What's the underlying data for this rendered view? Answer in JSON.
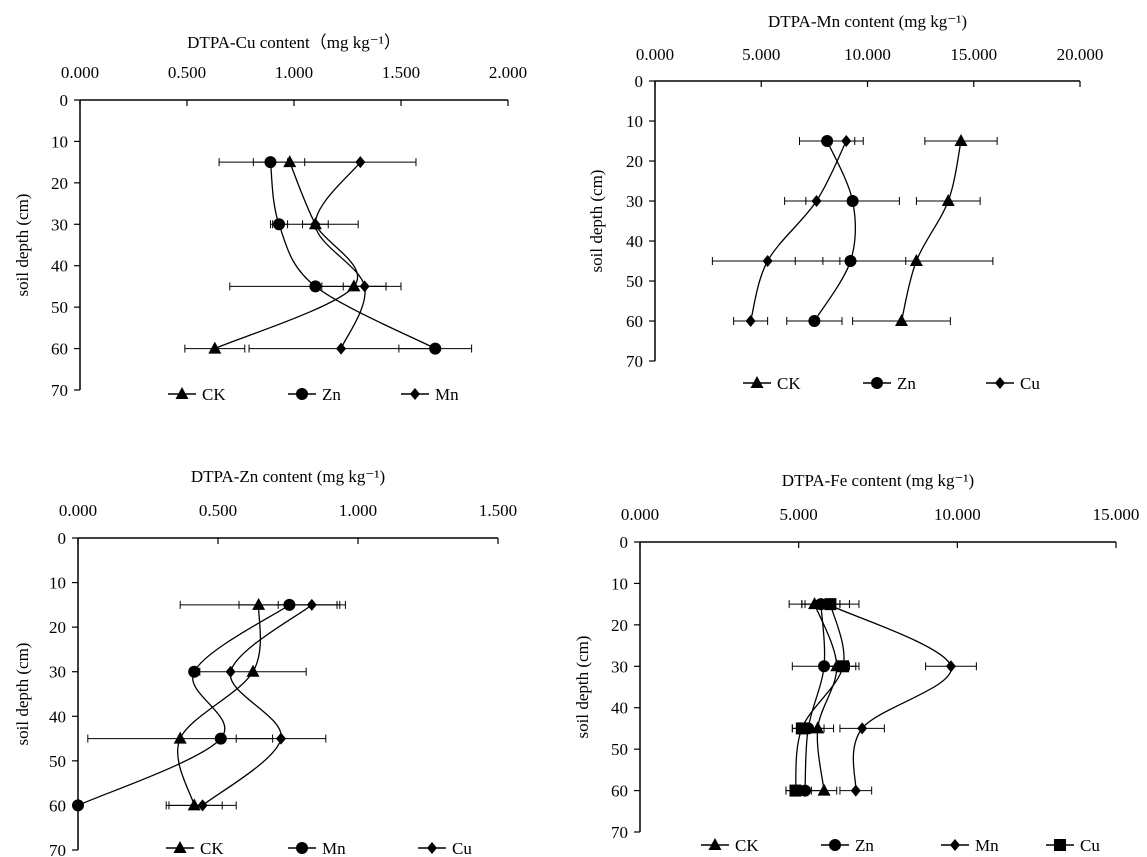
{
  "chart_data": [
    {
      "type": "line",
      "title": "DTPA-Cu content（mg kg⁻¹）",
      "xlabel": "DTPA-Cu content（mg kg⁻¹）",
      "ylabel": "soil depth (cm)",
      "xlim": [
        0,
        2
      ],
      "ylim": [
        0,
        70
      ],
      "x_ticks": [
        "0.000",
        "0.500",
        "1.000",
        "1.500",
        "2.000"
      ],
      "y_ticks": [
        "0",
        "10",
        "20",
        "30",
        "40",
        "50",
        "60",
        "70"
      ],
      "legend_position": "bottom",
      "y_reversed": true,
      "series": [
        {
          "name": "CK",
          "marker": "triangle",
          "points": [
            [
              0.98,
              15
            ],
            [
              1.1,
              30
            ],
            [
              1.28,
              45
            ],
            [
              0.63,
              60
            ]
          ],
          "errors": [
            0.33,
            0.06,
            0.15,
            0.14
          ]
        },
        {
          "name": "Zn",
          "marker": "circle",
          "points": [
            [
              0.89,
              15
            ],
            [
              0.93,
              30
            ],
            [
              1.1,
              45
            ],
            [
              1.66,
              60
            ]
          ],
          "errors": [
            0.08,
            0.04,
            0.4,
            0.17
          ]
        },
        {
          "name": "Mn",
          "marker": "diamond",
          "points": [
            [
              1.31,
              15
            ],
            [
              1.1,
              30
            ],
            [
              1.33,
              45
            ],
            [
              1.22,
              60
            ]
          ],
          "errors": [
            0.26,
            0.2,
            0.1,
            0.43
          ]
        }
      ]
    },
    {
      "type": "line",
      "title": "DTPA-Mn content (mg kg⁻¹)",
      "xlabel": "DTPA-Mn content (mg kg⁻¹)",
      "ylabel": "soil depth (cm)",
      "xlim": [
        0,
        20
      ],
      "ylim": [
        0,
        70
      ],
      "x_ticks": [
        "0.000",
        "5.000",
        "10.000",
        "15.000",
        "20.000"
      ],
      "y_ticks": [
        "0",
        "10",
        "20",
        "30",
        "40",
        "50",
        "60",
        "70"
      ],
      "legend_position": "bottom",
      "y_reversed": true,
      "series": [
        {
          "name": "CK",
          "marker": "triangle",
          "points": [
            [
              14.4,
              15
            ],
            [
              13.8,
              30
            ],
            [
              12.3,
              45
            ],
            [
              11.6,
              60
            ]
          ],
          "errors": [
            1.7,
            1.5,
            3.6,
            2.3
          ]
        },
        {
          "name": "Zn",
          "marker": "circle",
          "points": [
            [
              8.1,
              15
            ],
            [
              9.3,
              30
            ],
            [
              9.2,
              45
            ],
            [
              7.5,
              60
            ]
          ],
          "errors": [
            1.3,
            2.2,
            2.6,
            1.3
          ]
        },
        {
          "name": "Cu",
          "marker": "diamond",
          "points": [
            [
              9.0,
              15
            ],
            [
              7.6,
              30
            ],
            [
              5.3,
              45
            ],
            [
              4.5,
              60
            ]
          ],
          "errors": [
            0.8,
            1.5,
            2.6,
            0.8
          ]
        }
      ]
    },
    {
      "type": "line",
      "title": "DTPA-Zn content (mg kg⁻¹)",
      "xlabel": "DTPA-Zn content (mg kg⁻¹)",
      "ylabel": "soil depth (cm)",
      "xlim": [
        0,
        1.5
      ],
      "ylim": [
        0,
        70
      ],
      "x_ticks": [
        "0.000",
        "0.500",
        "1.000",
        "1.500"
      ],
      "y_ticks": [
        "0",
        "10",
        "20",
        "30",
        "40",
        "50",
        "60",
        "70"
      ],
      "legend_position": "bottom",
      "y_reversed": true,
      "series": [
        {
          "name": "CK",
          "marker": "triangle",
          "points": [
            [
              0.645,
              15
            ],
            [
              0.625,
              30
            ],
            [
              0.365,
              45
            ],
            [
              0.415,
              60
            ]
          ],
          "errors": [
            0.28,
            0.19,
            0.33,
            0.1
          ]
        },
        {
          "name": "Mn",
          "marker": "circle",
          "points": [
            [
              0.755,
              15
            ],
            [
              0.415,
              30
            ],
            [
              0.51,
              45
            ],
            [
              0.0,
              60
            ]
          ],
          "errors": [
            0.18,
            0.0,
            0.0,
            0.0
          ]
        },
        {
          "name": "Cu",
          "marker": "diamond",
          "points": [
            [
              0.835,
              15
            ],
            [
              0.545,
              30
            ],
            [
              0.725,
              45
            ],
            [
              0.445,
              60
            ]
          ],
          "errors": [
            0.12,
            0.0,
            0.16,
            0.12
          ]
        }
      ]
    },
    {
      "type": "line",
      "title": "DTPA-Fe content (mg kg⁻¹)",
      "xlabel": "DTPA-Fe content (mg kg⁻¹)",
      "ylabel": "soil depth (cm)",
      "xlim": [
        0,
        15
      ],
      "ylim": [
        0,
        70
      ],
      "x_ticks": [
        "0.000",
        "5.000",
        "10.000",
        "15.000"
      ],
      "y_ticks": [
        "0",
        "10",
        "20",
        "30",
        "40",
        "50",
        "60",
        "70"
      ],
      "legend_position": "bottom",
      "y_reversed": true,
      "series": [
        {
          "name": "CK",
          "marker": "triangle",
          "points": [
            [
              5.5,
              15
            ],
            [
              6.2,
              30
            ],
            [
              5.6,
              45
            ],
            [
              5.8,
              60
            ]
          ],
          "errors": [
            0.8,
            0.4,
            0.5,
            0.4
          ]
        },
        {
          "name": "Zn",
          "marker": "circle",
          "points": [
            [
              5.7,
              15
            ],
            [
              5.8,
              30
            ],
            [
              5.3,
              45
            ],
            [
              5.2,
              60
            ]
          ],
          "errors": [
            0.6,
            1.0,
            0.5,
            0.6
          ]
        },
        {
          "name": "Mn",
          "marker": "diamond",
          "points": [
            [
              5.9,
              15
            ],
            [
              9.8,
              30
            ],
            [
              7.0,
              45
            ],
            [
              6.8,
              60
            ]
          ],
          "errors": [
            0.7,
            0.8,
            0.7,
            0.5
          ]
        },
        {
          "name": "Cu",
          "marker": "square",
          "points": [
            [
              6.0,
              15
            ],
            [
              6.4,
              30
            ],
            [
              5.1,
              45
            ],
            [
              4.9,
              60
            ]
          ],
          "errors": [
            0.9,
            0.5,
            0.3,
            0.3
          ]
        }
      ]
    }
  ]
}
